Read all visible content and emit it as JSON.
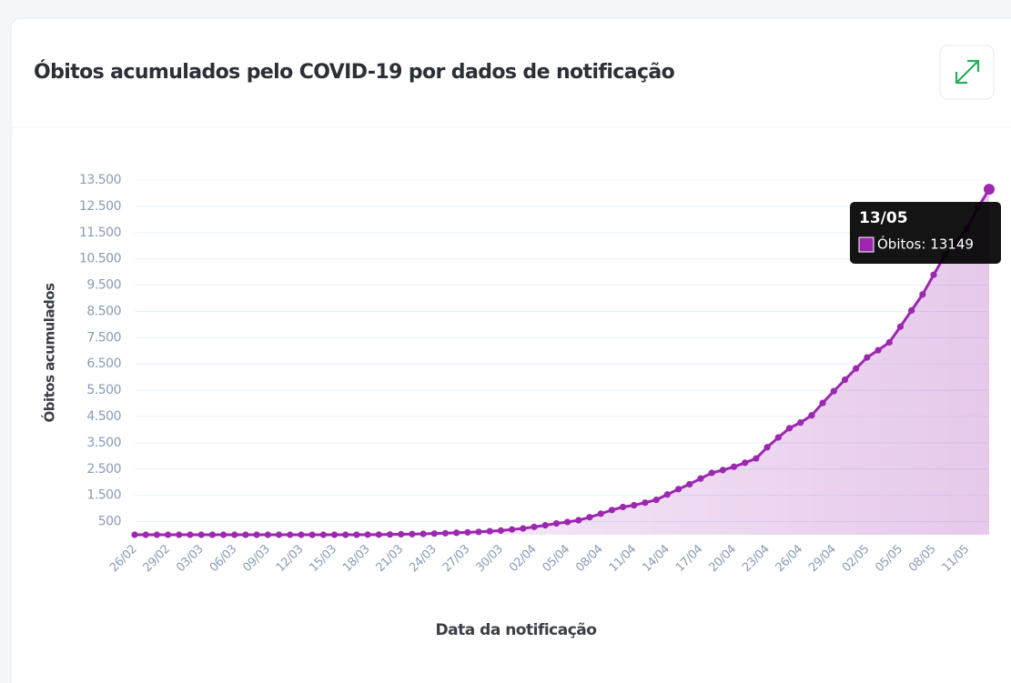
{
  "header": {
    "title": "Óbitos acumulados pelo COVID-19 por dados de notificação"
  },
  "chart_data": {
    "type": "line",
    "y_label": "Óbitos acumulados",
    "x_label": "Data da notificação",
    "categories": [
      "26/02",
      null,
      null,
      "29/02",
      null,
      null,
      "03/03",
      null,
      null,
      "06/03",
      null,
      null,
      "09/03",
      null,
      null,
      "12/03",
      null,
      null,
      "15/03",
      null,
      null,
      "18/03",
      null,
      null,
      "21/03",
      null,
      null,
      "24/03",
      null,
      null,
      "27/03",
      null,
      null,
      "30/03",
      null,
      null,
      "02/04",
      null,
      null,
      "05/04",
      null,
      null,
      "08/04",
      null,
      null,
      "11/04",
      null,
      null,
      "14/04",
      null,
      null,
      "17/04",
      null,
      null,
      "20/04",
      null,
      null,
      "23/04",
      null,
      null,
      "26/04",
      null,
      null,
      "29/04",
      null,
      null,
      "02/05",
      null,
      null,
      "05/05",
      null,
      null,
      "08/05",
      null,
      null,
      "11/05",
      null,
      null
    ],
    "series": [
      {
        "name": "Óbitos",
        "color": "#9c27b0",
        "values": [
          0,
          0,
          0,
          0,
          0,
          0,
          0,
          0,
          0,
          0,
          0,
          0,
          0,
          0,
          0,
          0,
          0,
          0,
          0,
          0,
          1,
          4,
          6,
          11,
          18,
          25,
          34,
          46,
          59,
          77,
          92,
          111,
          136,
          159,
          201,
          240,
          299,
          359,
          431,
          486,
          553,
          667,
          800,
          941,
          1056,
          1124,
          1223,
          1328,
          1532,
          1736,
          1924,
          2141,
          2354,
          2462,
          2587,
          2741,
          2906,
          3331,
          3704,
          4057,
          4271,
          4543,
          5017,
          5466,
          5901,
          6329,
          6750,
          7025,
          7321,
          7921,
          8536,
          9146,
          9897,
          10627,
          11123,
          11653,
          12461,
          13149
        ]
      }
    ],
    "ylim": [
      0,
      13500
    ],
    "yticks": [
      500,
      {
        "value": 1500,
        "label": "1.500"
      },
      {
        "value": 2500,
        "label": "2.500"
      },
      {
        "value": 3500,
        "label": "3.500"
      },
      {
        "value": 4500,
        "label": "4.500"
      },
      {
        "value": 5500,
        "label": "5.500"
      },
      {
        "value": 6500,
        "label": "6.500"
      },
      {
        "value": 7500,
        "label": "7.500"
      },
      {
        "value": 8500,
        "label": "8.500"
      },
      {
        "value": 9500,
        "label": "9.500"
      },
      {
        "value": 10500,
        "label": "10.500"
      },
      {
        "value": 11500,
        "label": "11.500"
      },
      {
        "value": 12500,
        "label": "12.500"
      },
      {
        "value": 13500,
        "label": "13.500"
      }
    ],
    "grid": true,
    "tooltip": {
      "title": "13/05",
      "text": "Óbitos: 13149"
    }
  }
}
